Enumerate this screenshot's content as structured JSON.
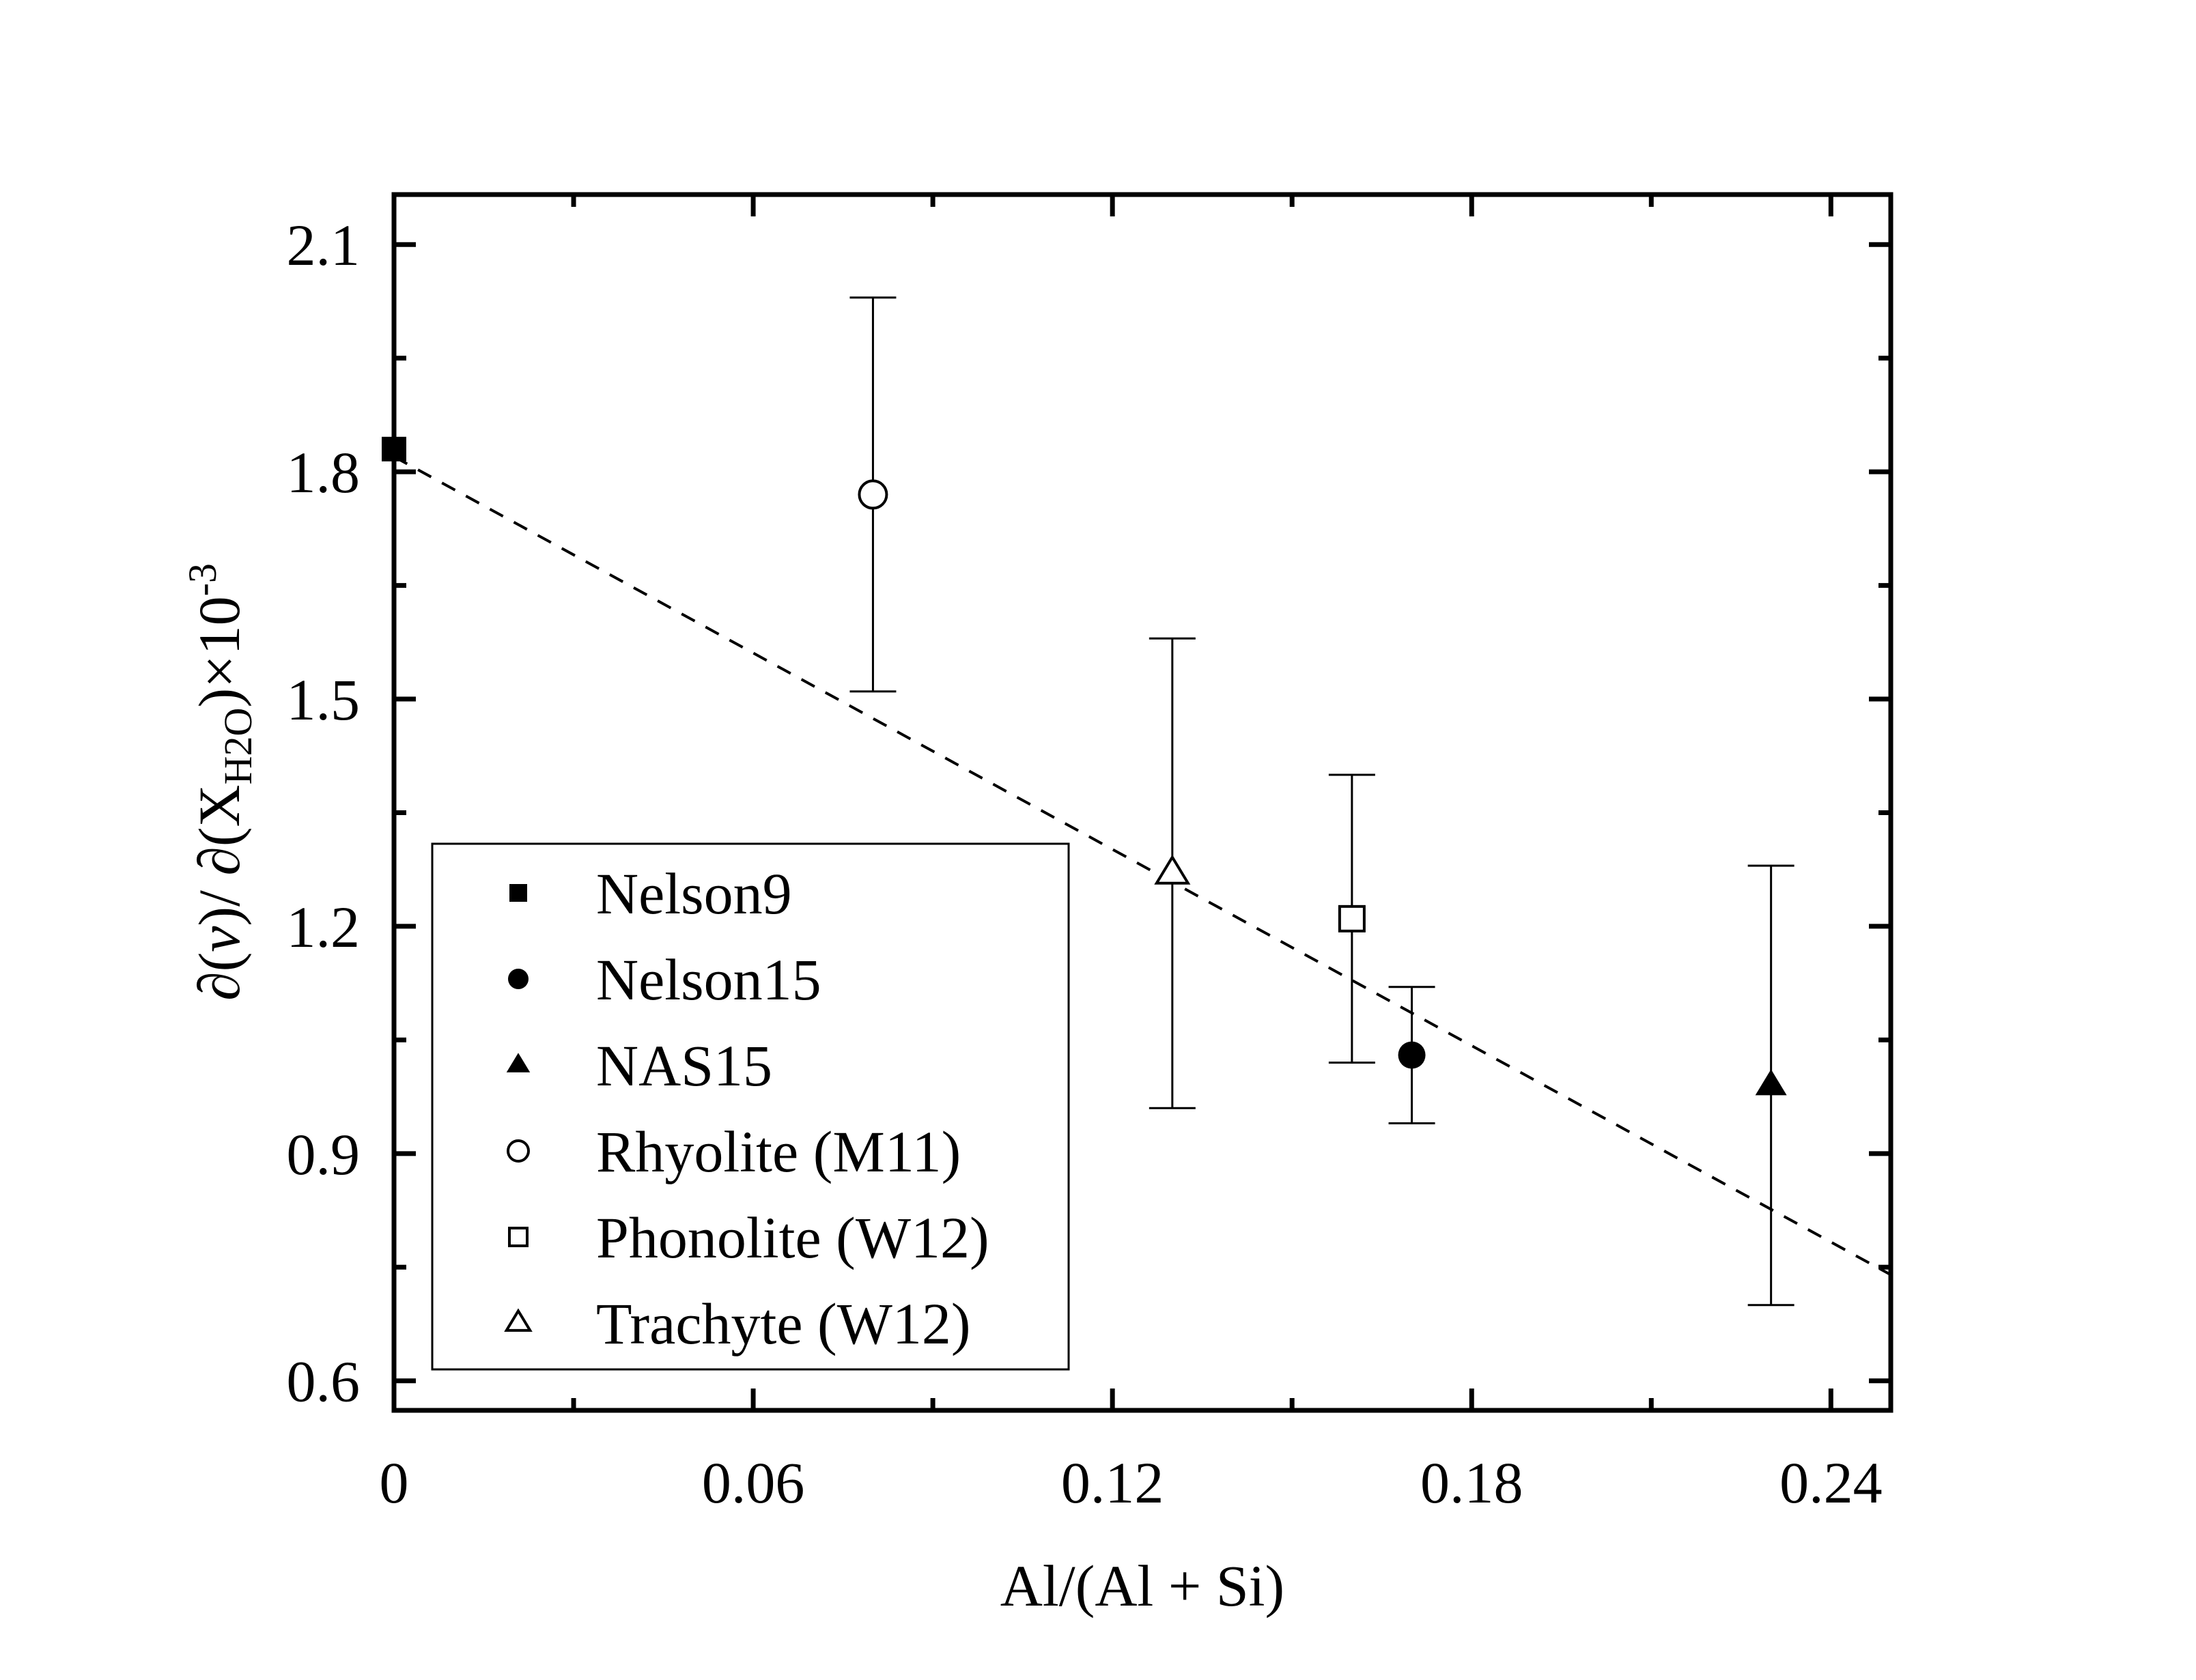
{
  "chart_data": {
    "type": "scatter",
    "title": "",
    "xlabel": "Al/(Al + Si)",
    "ylabel": {
      "prefix": "∂(",
      "nu": "ν",
      "middle": ")/ ∂(X",
      "subscript": "H2O",
      "suffix": ")×10",
      "superscript": "-3"
    },
    "xlim": [
      0,
      0.25
    ],
    "ylim": [
      0.561,
      2.166
    ],
    "xticks": [
      0,
      0.06,
      0.12,
      0.18,
      0.24
    ],
    "xtick_labels": [
      "0",
      "0.06",
      "0.12",
      "0.18",
      "0.24"
    ],
    "x_minor_ticks": [
      0.03,
      0.09,
      0.15,
      0.21
    ],
    "yticks": [
      0.6,
      0.9,
      1.2,
      1.5,
      1.8,
      2.1
    ],
    "ytick_labels": [
      "0.6",
      "0.9",
      "1.2",
      "1.5",
      "1.8",
      "2.1"
    ],
    "y_minor_ticks": [
      0.75,
      1.05,
      1.35,
      1.65,
      1.95
    ],
    "grid": false,
    "legend_position": "bottom-left",
    "series": [
      {
        "name": "Nelson9",
        "marker": "square",
        "filled": true,
        "x": 0.0,
        "y": 1.83,
        "err_low": null,
        "err_high": null
      },
      {
        "name": "Nelson15",
        "marker": "circle",
        "filled": true,
        "x": 0.17,
        "y": 1.03,
        "err_low": 0.94,
        "err_high": 1.12
      },
      {
        "name": "NAS15",
        "marker": "triangle",
        "filled": true,
        "x": 0.23,
        "y": 0.99,
        "err_low": 0.7,
        "err_high": 1.28
      },
      {
        "name": "Rhyolite (M11)",
        "marker": "circle",
        "filled": false,
        "x": 0.08,
        "y": 1.77,
        "err_low": 1.51,
        "err_high": 2.03
      },
      {
        "name": "Phonolite (W12)",
        "marker": "square",
        "filled": false,
        "x": 0.16,
        "y": 1.21,
        "err_low": 1.02,
        "err_high": 1.4
      },
      {
        "name": "Trachyte (W12)",
        "marker": "triangle",
        "filled": false,
        "x": 0.13,
        "y": 1.27,
        "err_low": 0.96,
        "err_high": 1.58
      }
    ],
    "fit_line": {
      "style": "dashed",
      "x": [
        0.0,
        0.25
      ],
      "y": [
        1.82,
        0.74
      ]
    },
    "colors": {
      "marker": "#000000",
      "axis": "#000000",
      "background": "#ffffff"
    }
  }
}
